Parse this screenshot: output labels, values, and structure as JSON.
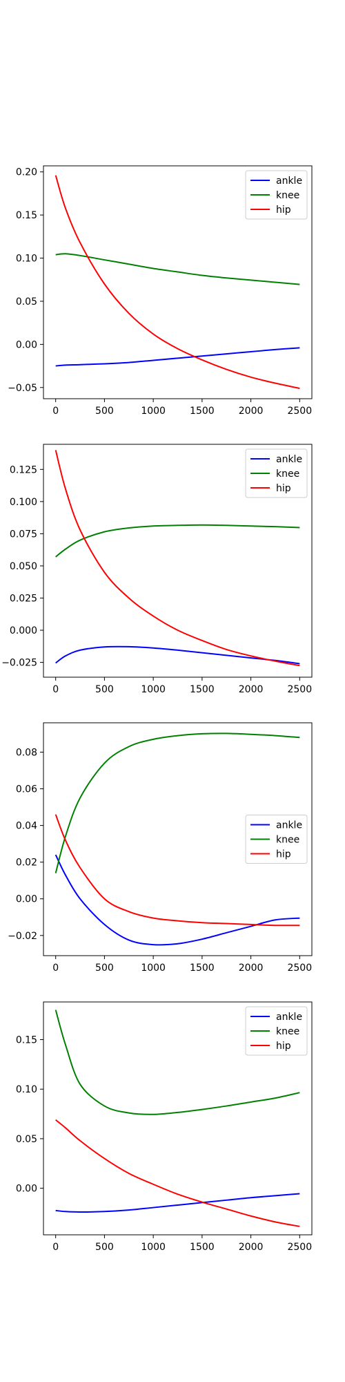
{
  "chart_data": [
    {
      "type": "line",
      "title": "",
      "xlabel": "",
      "ylabel": "",
      "xlim": [
        -125,
        2625
      ],
      "ylim": [
        -0.063,
        0.207
      ],
      "xticks": [
        "0",
        "500",
        "1000",
        "1500",
        "2000",
        "2500"
      ],
      "yticks": [
        "−0.05",
        "0.00",
        "0.05",
        "0.10",
        "0.15",
        "0.20"
      ],
      "legend_position": "upper right",
      "grid": false,
      "series": [
        {
          "name": "ankle",
          "color": "#0000ff",
          "x": [
            0,
            100,
            250,
            500,
            750,
            1000,
            1250,
            1500,
            1750,
            2000,
            2250,
            2500
          ],
          "y": [
            -0.025,
            -0.024,
            -0.0235,
            -0.0225,
            -0.021,
            -0.0185,
            -0.016,
            -0.0135,
            -0.011,
            -0.0085,
            -0.006,
            -0.004
          ]
        },
        {
          "name": "knee",
          "color": "#008000",
          "x": [
            0,
            100,
            250,
            500,
            750,
            1000,
            1250,
            1500,
            1750,
            2000,
            2250,
            2500
          ],
          "y": [
            0.104,
            0.105,
            0.103,
            0.098,
            0.093,
            0.088,
            0.084,
            0.08,
            0.077,
            0.0745,
            0.072,
            0.0695
          ]
        },
        {
          "name": "hip",
          "color": "#ff0000",
          "x": [
            0,
            100,
            250,
            500,
            750,
            1000,
            1250,
            1500,
            1750,
            2000,
            2250,
            2500
          ],
          "y": [
            0.196,
            0.158,
            0.118,
            0.07,
            0.036,
            0.012,
            -0.005,
            -0.018,
            -0.029,
            -0.038,
            -0.045,
            -0.051
          ]
        }
      ]
    },
    {
      "type": "line",
      "title": "",
      "xlabel": "",
      "ylabel": "",
      "xlim": [
        -125,
        2625
      ],
      "ylim": [
        -0.0365,
        0.1445
      ],
      "xticks": [
        "0",
        "500",
        "1000",
        "1500",
        "2000",
        "2500"
      ],
      "yticks": [
        "−0.025",
        "0.000",
        "0.025",
        "0.050",
        "0.075",
        "0.100",
        "0.125"
      ],
      "legend_position": "upper right",
      "grid": false,
      "series": [
        {
          "name": "ankle",
          "color": "#0000ff",
          "x": [
            0,
            100,
            250,
            500,
            750,
            1000,
            1250,
            1500,
            1750,
            2000,
            2250,
            2500
          ],
          "y": [
            -0.0255,
            -0.02,
            -0.0155,
            -0.013,
            -0.0128,
            -0.0138,
            -0.0155,
            -0.0175,
            -0.0195,
            -0.0215,
            -0.0235,
            -0.026
          ]
        },
        {
          "name": "knee",
          "color": "#008000",
          "x": [
            0,
            100,
            250,
            500,
            750,
            1000,
            1250,
            1500,
            1750,
            2000,
            2250,
            2500
          ],
          "y": [
            0.057,
            0.063,
            0.07,
            0.0765,
            0.0795,
            0.081,
            0.0815,
            0.0818,
            0.0815,
            0.081,
            0.0805,
            0.0798
          ]
        },
        {
          "name": "hip",
          "color": "#ff0000",
          "x": [
            0,
            100,
            250,
            500,
            750,
            1000,
            1250,
            1500,
            1750,
            2000,
            2250,
            2500
          ],
          "y": [
            0.14,
            0.11,
            0.078,
            0.045,
            0.025,
            0.011,
            0.0,
            -0.008,
            -0.015,
            -0.02,
            -0.024,
            -0.0275
          ]
        }
      ]
    },
    {
      "type": "line",
      "title": "",
      "xlabel": "",
      "ylabel": "",
      "xlim": [
        -125,
        2625
      ],
      "ylim": [
        -0.031,
        0.096
      ],
      "xticks": [
        "0",
        "500",
        "1000",
        "1500",
        "2000",
        "2500"
      ],
      "yticks": [
        "−0.02",
        "0.00",
        "0.02",
        "0.04",
        "0.06",
        "0.08"
      ],
      "legend_position": "center right",
      "grid": false,
      "series": [
        {
          "name": "ankle",
          "color": "#0000ff",
          "x": [
            0,
            100,
            250,
            500,
            750,
            1000,
            1250,
            1500,
            1750,
            2000,
            2250,
            2500
          ],
          "y": [
            0.024,
            0.013,
            0.0,
            -0.014,
            -0.0225,
            -0.025,
            -0.0245,
            -0.022,
            -0.0185,
            -0.015,
            -0.0115,
            -0.0105
          ]
        },
        {
          "name": "knee",
          "color": "#008000",
          "x": [
            0,
            100,
            250,
            500,
            750,
            1000,
            1250,
            1500,
            1750,
            2000,
            2250,
            2500
          ],
          "y": [
            0.014,
            0.034,
            0.055,
            0.074,
            0.083,
            0.087,
            0.089,
            0.09,
            0.0902,
            0.0897,
            0.089,
            0.088
          ]
        },
        {
          "name": "hip",
          "color": "#ff0000",
          "x": [
            0,
            100,
            250,
            500,
            750,
            1000,
            1250,
            1500,
            1750,
            2000,
            2250,
            2500
          ],
          "y": [
            0.046,
            0.032,
            0.017,
            0.0,
            -0.007,
            -0.0105,
            -0.012,
            -0.013,
            -0.0135,
            -0.014,
            -0.0145,
            -0.0145
          ]
        }
      ]
    },
    {
      "type": "line",
      "title": "",
      "xlabel": "",
      "ylabel": "",
      "xlim": [
        -125,
        2625
      ],
      "ylim": [
        -0.047,
        0.188
      ],
      "xticks": [
        "0",
        "500",
        "1000",
        "1500",
        "2000",
        "2500"
      ],
      "yticks": [
        "0.00",
        "0.05",
        "0.10",
        "0.15"
      ],
      "legend_position": "upper right",
      "grid": false,
      "series": [
        {
          "name": "ankle",
          "color": "#0000ff",
          "x": [
            0,
            100,
            250,
            500,
            750,
            1000,
            1250,
            1500,
            1750,
            2000,
            2250,
            2500
          ],
          "y": [
            -0.0225,
            -0.0235,
            -0.024,
            -0.0235,
            -0.022,
            -0.0195,
            -0.017,
            -0.0145,
            -0.012,
            -0.0095,
            -0.0075,
            -0.0055
          ]
        },
        {
          "name": "knee",
          "color": "#008000",
          "x": [
            0,
            100,
            250,
            500,
            750,
            1000,
            1250,
            1500,
            1750,
            2000,
            2250,
            2500
          ],
          "y": [
            0.18,
            0.145,
            0.105,
            0.083,
            0.076,
            0.0745,
            0.0765,
            0.0795,
            0.083,
            0.087,
            0.091,
            0.0965
          ]
        },
        {
          "name": "hip",
          "color": "#ff0000",
          "x": [
            0,
            100,
            250,
            500,
            750,
            1000,
            1250,
            1500,
            1750,
            2000,
            2250,
            2500
          ],
          "y": [
            0.069,
            0.061,
            0.048,
            0.03,
            0.015,
            0.004,
            -0.006,
            -0.014,
            -0.021,
            -0.028,
            -0.034,
            -0.0385
          ]
        }
      ]
    }
  ]
}
